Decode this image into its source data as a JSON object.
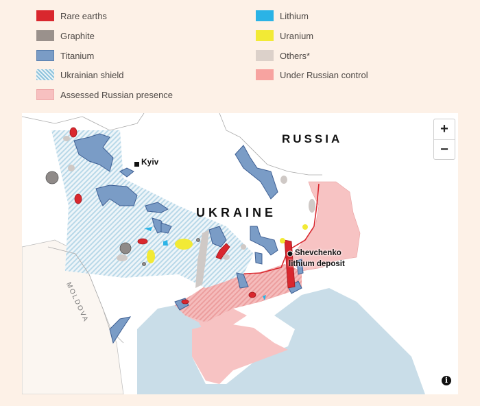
{
  "legend": {
    "items": [
      {
        "label": "Rare earths",
        "color": "#d9272e"
      },
      {
        "label": "Graphite",
        "color": "#9a918c"
      },
      {
        "label": "Titanium",
        "color": "#7a9cc6"
      },
      {
        "label": "Ukrainian shield",
        "color": "hatched #8ec3dc"
      },
      {
        "label": "Assessed Russian presence",
        "color": "#f7c0c0"
      },
      {
        "label": "Lithium",
        "color": "#2bb3e6"
      },
      {
        "label": "Uranium",
        "color": "#f2ea35"
      },
      {
        "label": "Others*",
        "color": "#dcd1ca"
      },
      {
        "label": "Under Russian control",
        "color": "#f7a3a0"
      }
    ]
  },
  "map": {
    "labels": {
      "russia": "RUSSIA",
      "ukraine": "UKRAINE",
      "moldova": "MOLDOVA",
      "kyiv": "Kyiv",
      "shevchenko": "Shevchenko",
      "lithium_deposit": "lithium deposit"
    },
    "zoom_in": "+",
    "zoom_out": "−",
    "info_icon": "i",
    "colors": {
      "sea": "#c9dde8",
      "land": "#ffffff",
      "occupied": "#f7c3c3",
      "front_line": "#d9272e"
    }
  }
}
